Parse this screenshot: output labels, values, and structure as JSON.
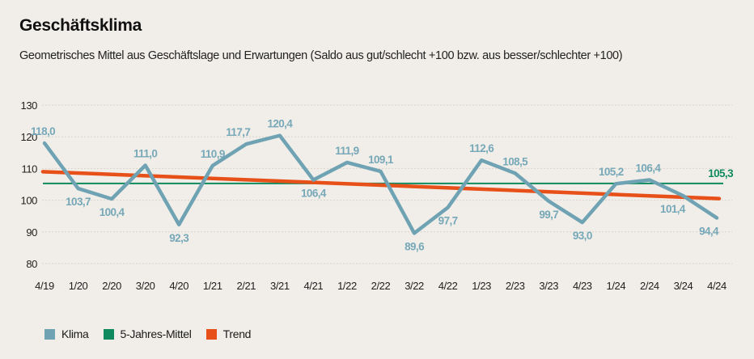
{
  "header": {
    "title": "Geschäftsklima",
    "subtitle": "Geometrisches Mittel aus Geschäftslage und Erwartungen (Saldo aus gut/schlecht +100 bzw. aus besser/schlechter +100)"
  },
  "legend": [
    {
      "label": "Klima",
      "color": "#6fa3b3"
    },
    {
      "label": "5-Jahres-Mittel",
      "color": "#0f8a5f"
    },
    {
      "label": "Trend",
      "color": "#e8501a"
    }
  ],
  "chart_data": {
    "type": "line",
    "title": "Geschäftsklima",
    "subtitle": "Geometrisches Mittel aus Geschäftslage und Erwartungen (Saldo aus gut/schlecht +100 bzw. aus besser/schlechter +100)",
    "xlabel": "",
    "ylabel": "",
    "ylim": [
      80,
      130
    ],
    "yticks": [
      80,
      90,
      100,
      110,
      120,
      130
    ],
    "ytick_labels": [
      "80",
      "90",
      "100",
      "110",
      "120",
      "130"
    ],
    "grid": true,
    "legend_position": "bottom-left",
    "categories": [
      "4/19",
      "1/20",
      "2/20",
      "3/20",
      "4/20",
      "1/21",
      "2/21",
      "3/21",
      "4/21",
      "1/22",
      "2/22",
      "3/22",
      "4/22",
      "1/23",
      "2/23",
      "3/23",
      "4/23",
      "1/24",
      "2/24",
      "3/24",
      "4/24"
    ],
    "series": [
      {
        "name": "Klima",
        "color": "#6fa3b3",
        "values": [
          118.0,
          103.7,
          100.4,
          111.0,
          92.3,
          110.9,
          117.7,
          120.4,
          106.4,
          111.9,
          109.1,
          89.6,
          97.7,
          112.6,
          108.5,
          99.7,
          93.0,
          105.2,
          106.4,
          101.4,
          94.4
        ],
        "labels": [
          "118,0",
          "103,7",
          "100,4",
          "111,0",
          "92,3",
          "110,9",
          "117,7",
          "120,4",
          "106,4",
          "111,9",
          "109,1",
          "89,6",
          "97,7",
          "112,6",
          "108,5",
          "99,7",
          "93,0",
          "105,2",
          "106,4",
          "101,4",
          "94,4"
        ],
        "label_pos": [
          "above",
          "below",
          "below",
          "above",
          "below",
          "above",
          "above",
          "above",
          "below",
          "above",
          "above",
          "below",
          "below",
          "above",
          "above",
          "below",
          "below",
          "above",
          "above",
          "below",
          "below"
        ]
      },
      {
        "name": "5-Jahres-Mittel",
        "color": "#0f8a5f",
        "values": [
          105.3,
          105.3
        ],
        "label": "105,3"
      },
      {
        "name": "Trend",
        "color": "#e8501a",
        "values": [
          109.0,
          100.5
        ]
      }
    ]
  }
}
